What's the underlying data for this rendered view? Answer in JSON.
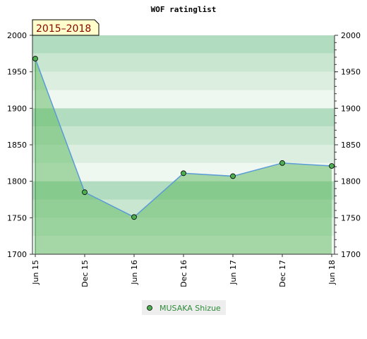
{
  "chart_data": {
    "type": "area",
    "title": "WOF ratinglist",
    "period_badge": "2015–2018",
    "categories": [
      "Jun 15",
      "Dec 15",
      "Jun 16",
      "Dec 16",
      "Jun 17",
      "Dec 17",
      "Jun 18"
    ],
    "series": [
      {
        "name": "MUSAKA Shizue",
        "values": [
          1968,
          1785,
          1751,
          1811,
          1807,
          1825,
          1821
        ]
      }
    ],
    "ylim": [
      1700,
      2000
    ],
    "yticks": [
      1700,
      1750,
      1800,
      1850,
      1900,
      1950,
      2000
    ],
    "ytick_labels": [
      "1700",
      "1750",
      "1800",
      "1850",
      "1900",
      "1950",
      "2000"
    ],
    "grid": true,
    "legend_position": "bottom",
    "colors": {
      "line": "#5b9bd5",
      "area": "#5cb85c",
      "marker": "#4caf50",
      "badge_bg": "#ffffcc",
      "badge_text": "#8b0000",
      "legend_text": "#2e8b3a"
    }
  }
}
